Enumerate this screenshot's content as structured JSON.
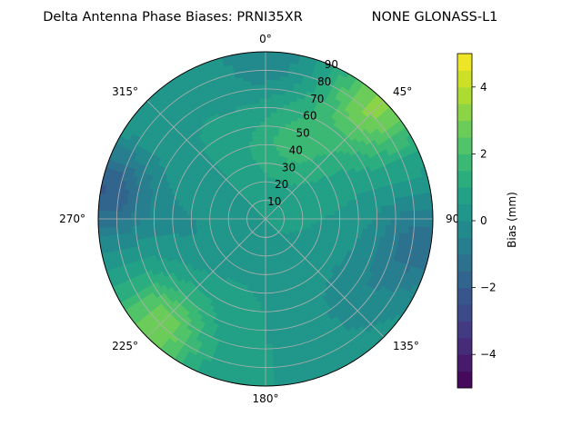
{
  "chart_data": {
    "type": "polar-contour",
    "title_left": "Delta Antenna Phase Biases: PRNI35XR",
    "title_right": "NONE GLONASS-L1",
    "angular_axis": {
      "direction": "clockwise",
      "zero_location": "top",
      "tick_labels": [
        "0°",
        "45°",
        "90°",
        "135°",
        "180°",
        "225°",
        "270°",
        "315°"
      ]
    },
    "radial_axis": {
      "range": [
        0,
        90
      ],
      "ticks": [
        10,
        20,
        30,
        40,
        50,
        60,
        70,
        80,
        90
      ],
      "tick_labels": [
        "10",
        "20",
        "30",
        "40",
        "50",
        "60",
        "70",
        "80",
        "90"
      ]
    },
    "grid": true,
    "colorbar": {
      "label": "Bias (mm)",
      "range": [
        -5,
        5
      ],
      "ticks": [
        -4,
        -2,
        0,
        2,
        4
      ],
      "tick_labels": [
        "−4",
        "−2",
        "0",
        "2",
        "4"
      ],
      "levels": [
        -5,
        -4.5,
        -4,
        -3.5,
        -3,
        -2.5,
        -2,
        -1.5,
        -1,
        -0.5,
        0,
        0.5,
        1,
        1.5,
        2,
        2.5,
        3,
        3.5,
        4,
        4.5,
        5
      ],
      "colormap": "viridis"
    },
    "field": {
      "background_bias": 0.5,
      "features": [
        {
          "azimuth": 280,
          "zenith": 88,
          "bias": -2.5
        },
        {
          "azimuth": 100,
          "zenith": 85,
          "bias": -1.8
        },
        {
          "azimuth": 45,
          "zenith": 85,
          "bias": 2.6
        },
        {
          "azimuth": 225,
          "zenith": 82,
          "bias": 2.4
        },
        {
          "azimuth": 130,
          "zenith": 65,
          "bias": -0.8
        },
        {
          "azimuth": 0,
          "zenith": 89,
          "bias": -1.0
        },
        {
          "azimuth": 260,
          "zenith": 40,
          "bias": -0.5
        },
        {
          "azimuth": 20,
          "zenith": 45,
          "bias": 1.2
        }
      ]
    }
  }
}
